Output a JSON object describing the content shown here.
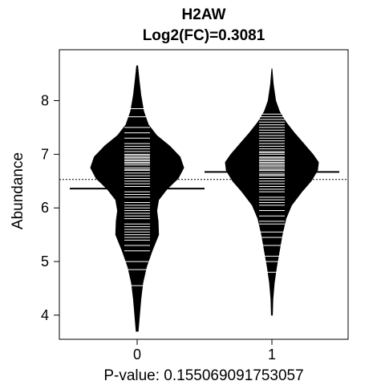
{
  "chart_data": {
    "type": "beanplot",
    "title": "H2AW",
    "subtitle": "Log2(FC)=0.3081",
    "ylabel": "Abundance",
    "xlabel": "P-value: 0.155069091753057",
    "categories": [
      "0",
      "1"
    ],
    "ylim": [
      3.55,
      8.95
    ],
    "yticks": [
      4,
      5,
      6,
      7,
      8
    ],
    "overall_mean": 6.53,
    "groups": [
      {
        "category": "0",
        "mean": 6.36,
        "range": [
          3.7,
          8.65
        ],
        "density": [
          [
            3.7,
            0.02
          ],
          [
            4.0,
            0.05
          ],
          [
            4.3,
            0.08
          ],
          [
            4.6,
            0.12
          ],
          [
            4.9,
            0.2
          ],
          [
            5.2,
            0.32
          ],
          [
            5.5,
            0.46
          ],
          [
            5.75,
            0.45
          ],
          [
            5.95,
            0.42
          ],
          [
            6.15,
            0.46
          ],
          [
            6.35,
            0.64
          ],
          [
            6.55,
            0.88
          ],
          [
            6.75,
            1.0
          ],
          [
            6.95,
            0.92
          ],
          [
            7.15,
            0.7
          ],
          [
            7.35,
            0.42
          ],
          [
            7.55,
            0.24
          ],
          [
            7.8,
            0.14
          ],
          [
            8.1,
            0.08
          ],
          [
            8.4,
            0.04
          ],
          [
            8.65,
            0.01
          ]
        ],
        "points": [
          4.55,
          4.85,
          5.0,
          5.2,
          5.3,
          5.4,
          5.45,
          5.5,
          5.55,
          5.6,
          5.65,
          5.7,
          5.8,
          5.85,
          5.9,
          5.95,
          6.0,
          6.05,
          6.1,
          6.2,
          6.25,
          6.3,
          6.4,
          6.45,
          6.5,
          6.55,
          6.6,
          6.65,
          6.7,
          6.72,
          6.75,
          6.8,
          6.83,
          6.85,
          6.88,
          6.9,
          6.93,
          6.95,
          6.98,
          7.0,
          7.05,
          7.1,
          7.15,
          7.2,
          7.3,
          7.4,
          7.5,
          7.7,
          7.85
        ]
      },
      {
        "category": "1",
        "mean": 6.67,
        "range": [
          4.0,
          8.6
        ],
        "density": [
          [
            4.0,
            0.01
          ],
          [
            4.3,
            0.02
          ],
          [
            4.6,
            0.05
          ],
          [
            4.9,
            0.1
          ],
          [
            5.2,
            0.16
          ],
          [
            5.5,
            0.22
          ],
          [
            5.8,
            0.3
          ],
          [
            6.05,
            0.42
          ],
          [
            6.3,
            0.64
          ],
          [
            6.5,
            0.84
          ],
          [
            6.7,
            0.98
          ],
          [
            6.85,
            1.0
          ],
          [
            7.0,
            0.88
          ],
          [
            7.2,
            0.68
          ],
          [
            7.4,
            0.48
          ],
          [
            7.6,
            0.3
          ],
          [
            7.8,
            0.16
          ],
          [
            8.0,
            0.08
          ],
          [
            8.3,
            0.03
          ],
          [
            8.6,
            0.0
          ]
        ],
        "points": [
          4.8,
          5.0,
          5.1,
          5.3,
          5.45,
          5.55,
          5.7,
          5.75,
          5.85,
          5.95,
          6.05,
          6.1,
          6.15,
          6.2,
          6.3,
          6.35,
          6.4,
          6.45,
          6.5,
          6.55,
          6.6,
          6.62,
          6.65,
          6.68,
          6.7,
          6.72,
          6.75,
          6.78,
          6.8,
          6.83,
          6.85,
          6.88,
          6.9,
          6.93,
          6.95,
          7.0,
          7.03,
          7.05,
          7.1,
          7.15,
          7.2,
          7.25,
          7.3,
          7.35,
          7.4,
          7.45,
          7.5,
          7.55,
          7.6,
          7.65,
          7.7,
          7.75
        ]
      }
    ]
  }
}
